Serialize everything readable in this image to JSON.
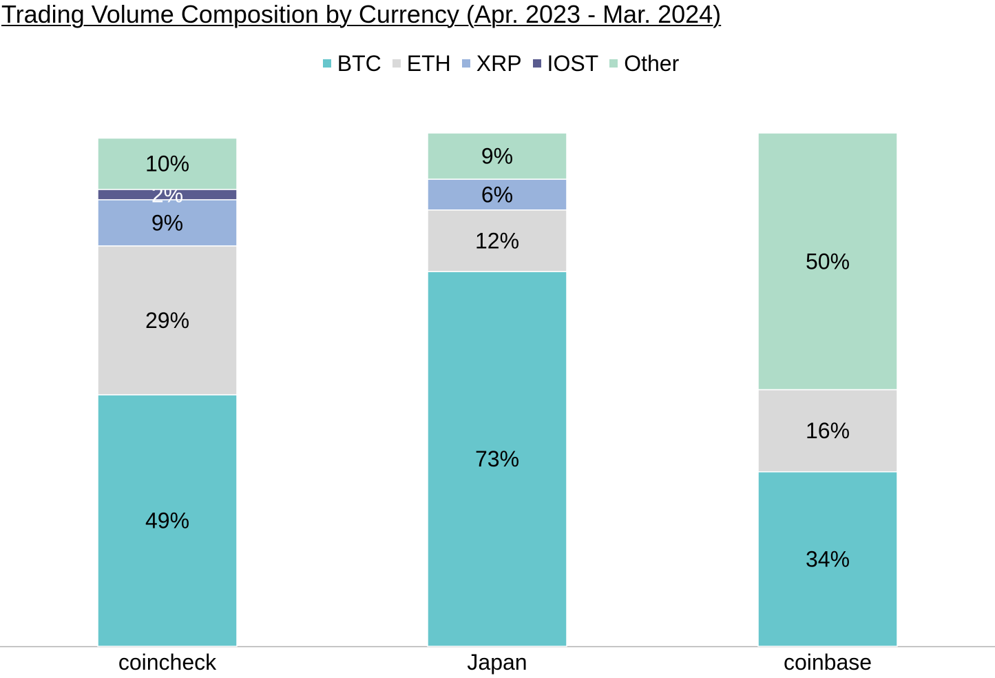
{
  "chart_data": {
    "type": "bar",
    "stacked": true,
    "title": "Trading Volume Composition by Currency (Apr. 2023 - Mar. 2024)",
    "categories": [
      "coincheck",
      "Japan",
      "coinbase"
    ],
    "series": [
      {
        "name": "BTC",
        "color": "#67c6cc",
        "values": [
          49,
          73,
          34
        ],
        "labels": [
          "49%",
          "73%",
          "34%"
        ]
      },
      {
        "name": "ETH",
        "color": "#d9d9d9",
        "values": [
          29,
          12,
          16
        ],
        "labels": [
          "29%",
          "12%",
          "16%"
        ]
      },
      {
        "name": "XRP",
        "color": "#99b3dc",
        "values": [
          9,
          6,
          null
        ],
        "labels": [
          "9%",
          "6%",
          ""
        ]
      },
      {
        "name": "IOST",
        "color": "#5a5c8f",
        "values": [
          2,
          null,
          null
        ],
        "labels": [
          "2%",
          "",
          ""
        ]
      },
      {
        "name": "Other",
        "color": "#afdcc8",
        "values": [
          10,
          9,
          50
        ],
        "labels": [
          "10%",
          "9%",
          "50%"
        ]
      }
    ],
    "legend_position": "top",
    "grid": false
  }
}
